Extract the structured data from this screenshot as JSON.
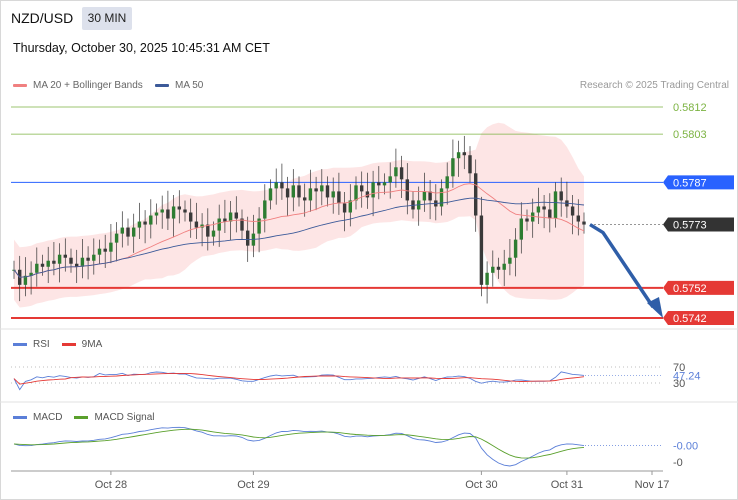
{
  "header": {
    "pair": "NZD/USD",
    "timeframe": "30 MIN",
    "datetime": "Thursday, October 30, 2025 10:45:31 AM CET"
  },
  "legend": {
    "ma20_label": "MA 20 + Bollinger Bands",
    "ma50_label": "MA 50",
    "copyright": "Research © 2025 Trading Central"
  },
  "colors": {
    "ma20": "#f08080",
    "ma50": "#3c5a99",
    "bands_fill": "#fde2e2",
    "candle": "#2e7d32",
    "resistance": "#7cb342",
    "pivot": "#2962ff",
    "support": "#e53935",
    "current": "#333333",
    "arrow": "#2f5ea8",
    "rsi": "#5b7fd8",
    "rsi_ma": "#e53935",
    "macd": "#5b7fd8",
    "macd_signal": "#5aa02c"
  },
  "chart_data": {
    "type": "candlestick",
    "title": "NZD/USD",
    "timeframe": "30 MIN",
    "x_tick_labels": [
      "Oct 28",
      "Oct 29",
      "Oct 30",
      "Oct 31",
      "Nov 17"
    ],
    "ylim": [
      0.5742,
      0.5812
    ],
    "levels": [
      {
        "value": "0.5812",
        "kind": "resistance"
      },
      {
        "value": "0.5803",
        "kind": "resistance"
      },
      {
        "value": "0.5787",
        "kind": "pivot"
      },
      {
        "value": "0.5773",
        "kind": "current"
      },
      {
        "value": "0.5752",
        "kind": "support"
      },
      {
        "value": "0.5742",
        "kind": "support"
      }
    ],
    "price_close": [
      0.5758,
      0.5753,
      0.5756,
      0.5757,
      0.576,
      0.5759,
      0.5761,
      0.576,
      0.5763,
      0.5762,
      0.576,
      0.5759,
      0.5762,
      0.5761,
      0.5763,
      0.5765,
      0.5764,
      0.5767,
      0.577,
      0.5772,
      0.5769,
      0.5772,
      0.5774,
      0.5773,
      0.5776,
      0.5777,
      0.5778,
      0.5775,
      0.5779,
      0.5778,
      0.5777,
      0.5774,
      0.5772,
      0.5773,
      0.5769,
      0.5771,
      0.5775,
      0.5774,
      0.5777,
      0.5775,
      0.5771,
      0.5766,
      0.577,
      0.5775,
      0.5781,
      0.5785,
      0.5787,
      0.5785,
      0.5782,
      0.5786,
      0.5782,
      0.5781,
      0.5785,
      0.5784,
      0.5786,
      0.5782,
      0.5784,
      0.578,
      0.5777,
      0.5781,
      0.5786,
      0.5784,
      0.5782,
      0.5787,
      0.5786,
      0.5787,
      0.5789,
      0.5792,
      0.5788,
      0.5781,
      0.5778,
      0.5781,
      0.5784,
      0.5781,
      0.5779,
      0.5785,
      0.5789,
      0.5795,
      0.5797,
      0.5796,
      0.579,
      0.5776,
      0.5753,
      0.5757,
      0.5759,
      0.5758,
      0.576,
      0.5762,
      0.5768,
      0.5775,
      0.5774,
      0.5777,
      0.5779,
      0.5778,
      0.5775,
      0.5784,
      0.5781,
      0.5779,
      0.5776,
      0.5774,
      0.5773
    ],
    "rsi": {
      "value": "47.24",
      "levels": [
        "70",
        "30"
      ],
      "ylim": [
        0,
        100
      ]
    },
    "macd": {
      "value": "-0.00",
      "level_label": "-0"
    }
  },
  "rsi_legend": {
    "rsi_label": "RSI",
    "ma_label": "9MA"
  },
  "macd_legend": {
    "macd_label": "MACD",
    "signal_label": "MACD Signal"
  }
}
